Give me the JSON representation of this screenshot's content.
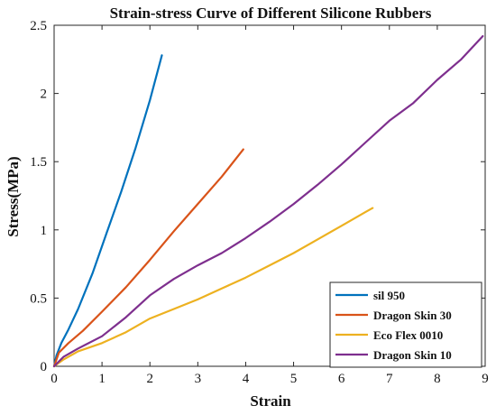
{
  "chart_data": {
    "type": "line",
    "title": "Strain-stress Curve of Different Silicone Rubbers",
    "xlabel": "Strain",
    "ylabel": "Stress(MPa)",
    "xlim": [
      0,
      9
    ],
    "ylim": [
      0,
      2.5
    ],
    "xticks": [
      "0",
      "1",
      "2",
      "3",
      "4",
      "5",
      "6",
      "7",
      "8",
      "9"
    ],
    "yticks": [
      "0",
      "0.5",
      "1",
      "1.5",
      "2",
      "2.5"
    ],
    "grid": false,
    "legend_position": "bottom-right",
    "series": [
      {
        "name": "sil 950",
        "color": "#0072BD",
        "x": [
          0,
          0.05,
          0.15,
          0.3,
          0.5,
          0.8,
          1.1,
          1.4,
          1.7,
          2.0,
          2.25
        ],
        "y": [
          0,
          0.08,
          0.17,
          0.27,
          0.42,
          0.68,
          0.98,
          1.28,
          1.6,
          1.95,
          2.28
        ]
      },
      {
        "name": "Dragon Skin 30",
        "color": "#D95319",
        "x": [
          0,
          0.1,
          0.3,
          0.6,
          1.0,
          1.5,
          2.0,
          2.5,
          3.0,
          3.5,
          3.95
        ],
        "y": [
          0,
          0.1,
          0.17,
          0.26,
          0.4,
          0.58,
          0.78,
          0.99,
          1.19,
          1.39,
          1.59
        ]
      },
      {
        "name": "Eco Flex 0010",
        "color": "#EDB120",
        "x": [
          0,
          0.2,
          0.5,
          1.0,
          1.5,
          2.0,
          2.5,
          3.0,
          3.5,
          4.0,
          4.5,
          5.0,
          5.5,
          6.0,
          6.5,
          6.65
        ],
        "y": [
          0,
          0.05,
          0.11,
          0.17,
          0.25,
          0.35,
          0.42,
          0.49,
          0.57,
          0.65,
          0.74,
          0.83,
          0.93,
          1.03,
          1.13,
          1.16
        ]
      },
      {
        "name": "Dragon Skin 10",
        "color": "#7E2F8E",
        "x": [
          0,
          0.2,
          0.5,
          1.0,
          1.5,
          2.0,
          2.5,
          3.0,
          3.5,
          4.0,
          4.5,
          5.0,
          5.5,
          6.0,
          6.5,
          7.0,
          7.5,
          8.0,
          8.5,
          8.95
        ],
        "y": [
          0,
          0.07,
          0.13,
          0.22,
          0.36,
          0.52,
          0.64,
          0.74,
          0.83,
          0.94,
          1.06,
          1.19,
          1.33,
          1.48,
          1.64,
          1.8,
          1.93,
          2.1,
          2.25,
          2.42
        ]
      }
    ]
  }
}
